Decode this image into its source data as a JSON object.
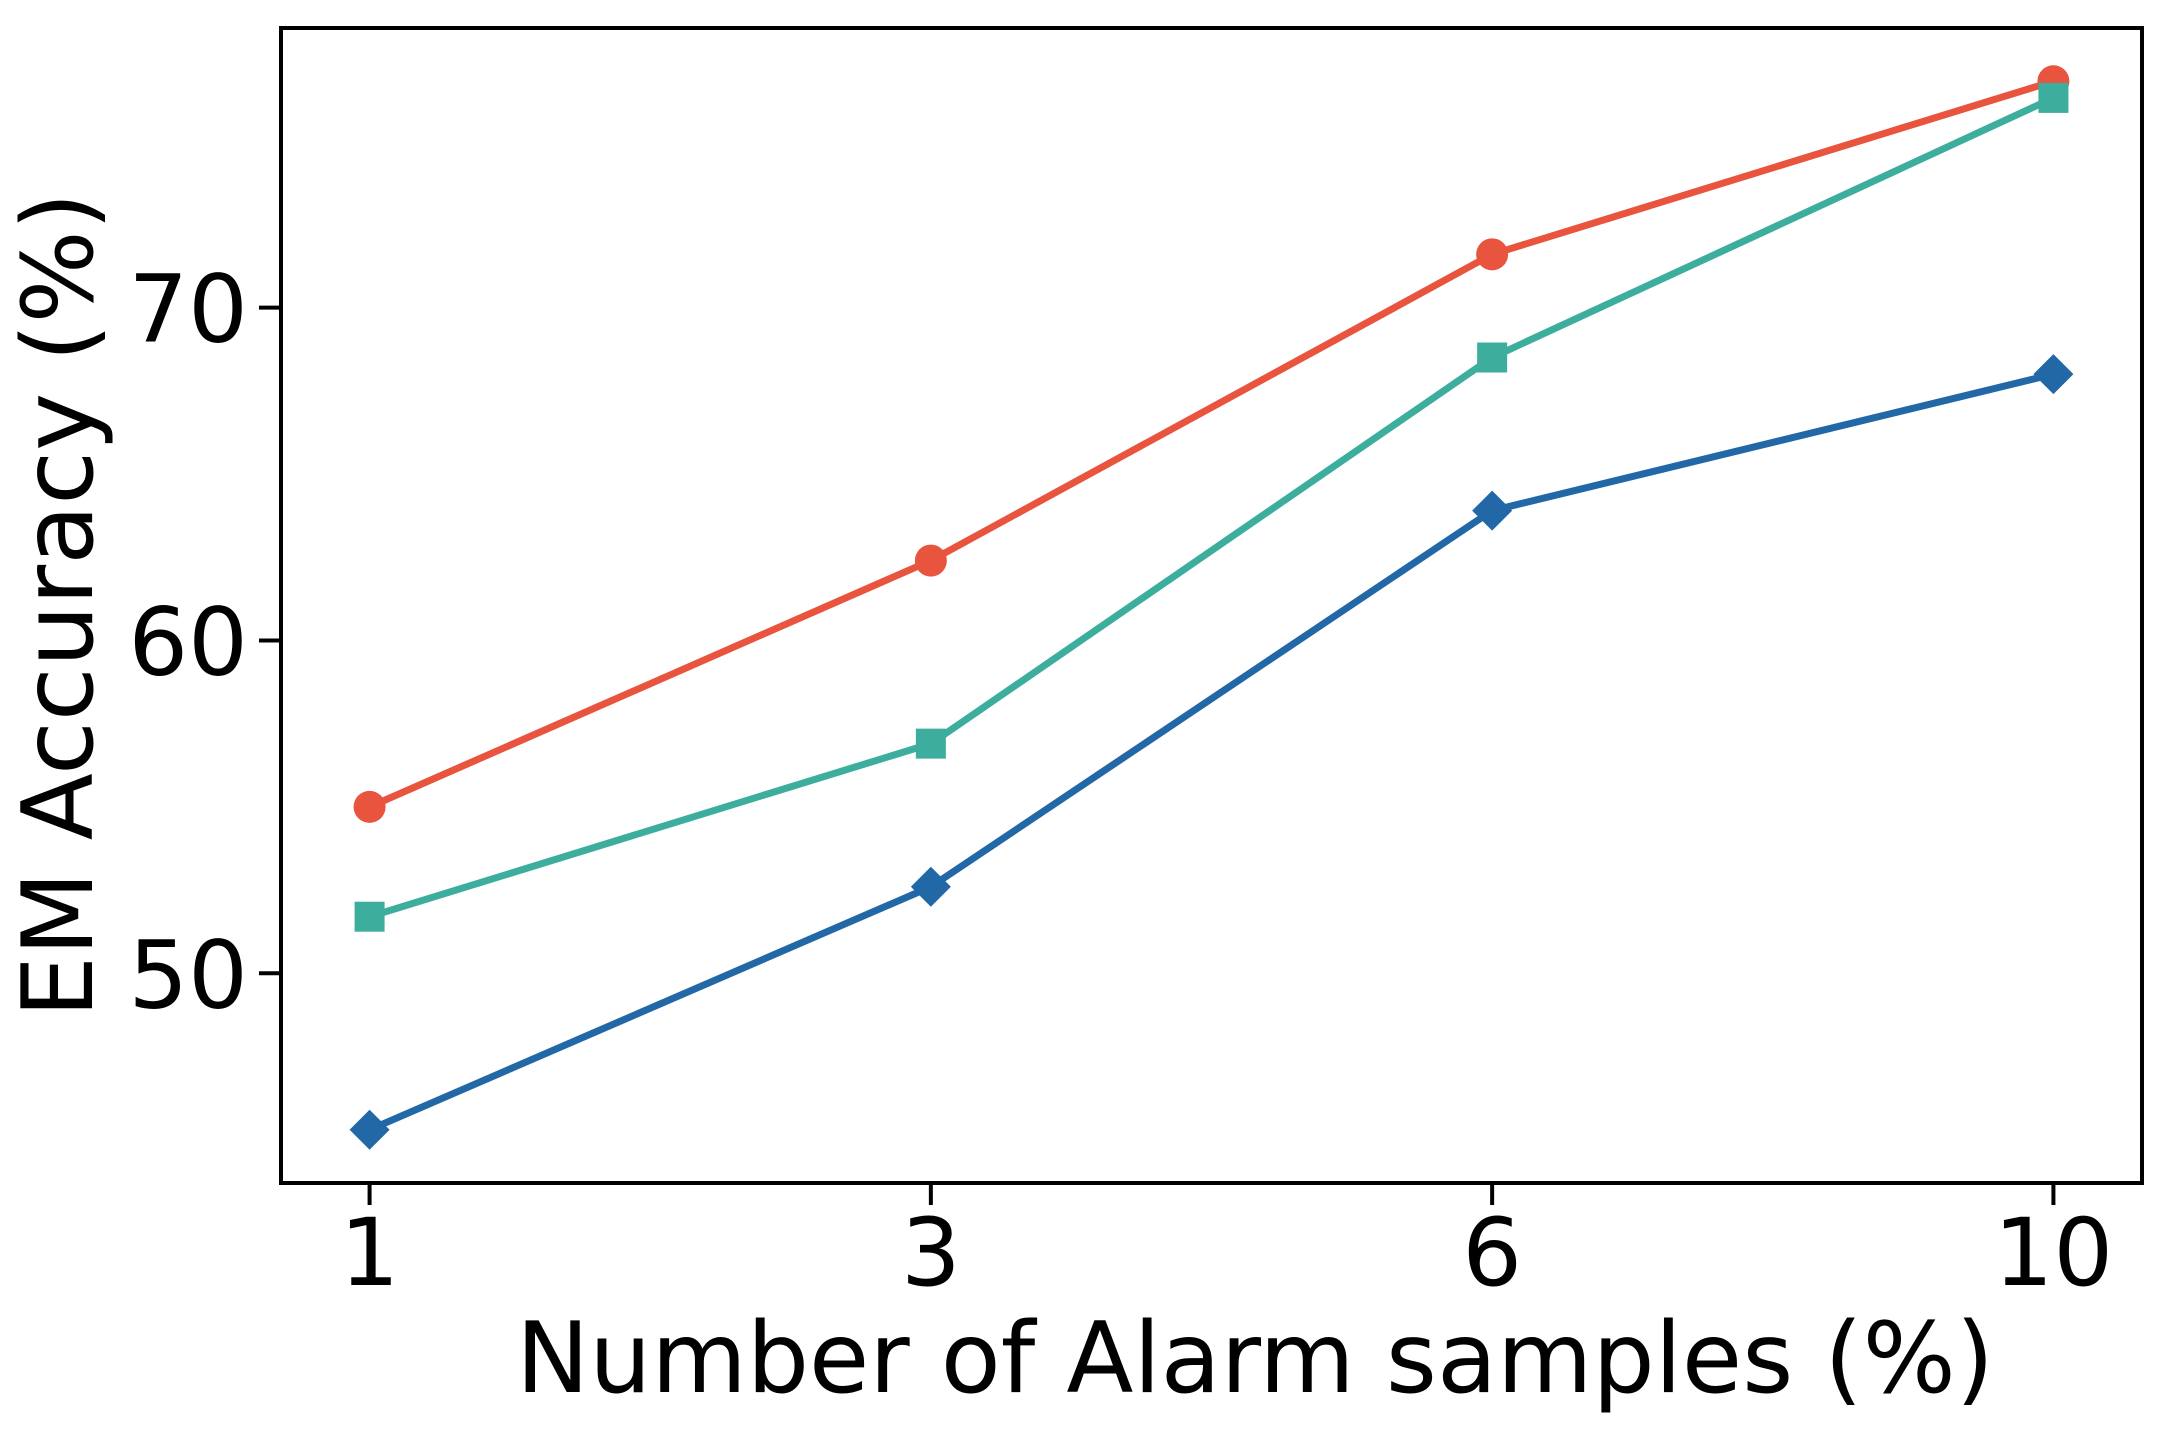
{
  "figure": {
    "background": "#ffffff",
    "text_color": "#000000"
  },
  "chart_data": {
    "type": "line",
    "title": "",
    "xlabel": "Number of Alarm samples (%)",
    "ylabel": "EM Accuracy (%)",
    "x_scale": "categorical-evenly-spaced",
    "categories": [
      "1",
      "3",
      "6",
      "10"
    ],
    "x_values": [
      1,
      3,
      6,
      10
    ],
    "y_ticks": [
      50,
      60,
      70
    ],
    "y_tick_labels": [
      "50",
      "60",
      "70"
    ],
    "ylim": [
      43.7,
      78.4
    ],
    "grid": false,
    "legend": "none",
    "series": [
      {
        "name": "red-circle-series",
        "marker": "circle",
        "color": "#E8543D",
        "values": [
          55.0,
          62.4,
          71.6,
          76.8
        ]
      },
      {
        "name": "teal-square-series",
        "marker": "square",
        "color": "#3DAE9E",
        "values": [
          51.7,
          56.9,
          68.5,
          76.3
        ]
      },
      {
        "name": "blue-diamond-series",
        "marker": "diamond",
        "color": "#2268A6",
        "values": [
          45.3,
          52.6,
          63.9,
          68.0
        ]
      }
    ],
    "style": {
      "line_width": 7,
      "marker_circle_radius": 16,
      "marker_square_side": 30,
      "marker_diamond_half_diagonal": 20,
      "spine_color": "#000000",
      "spine_width": 4,
      "tick_length": 20,
      "tick_width": 4
    }
  }
}
